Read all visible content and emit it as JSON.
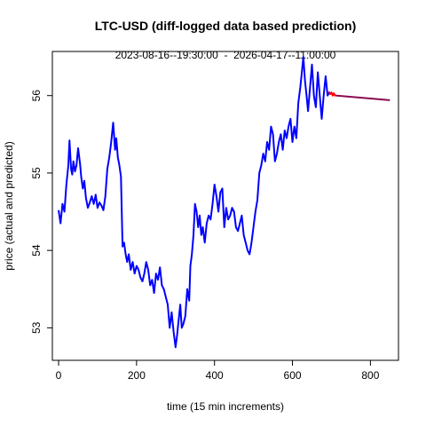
{
  "chart_data": {
    "type": "line",
    "title": "LTC-USD (diff-logged data based prediction)",
    "subtitle": "2023-08-16--19:30:00  -  2026-04-17--11:00:00",
    "xlabel": "time (15 min increments)",
    "ylabel": "price (actual and predicted)",
    "xlim": [
      -16,
      872
    ],
    "ylim": [
      52.58,
      56.57
    ],
    "x_ticks": [
      0,
      200,
      400,
      600,
      800
    ],
    "y_ticks": [
      53,
      54,
      55,
      56
    ],
    "grid": false,
    "legend": "none",
    "series": [
      {
        "color": "#0000ff",
        "x": [
          0,
          5,
          10,
          15,
          20,
          25,
          28,
          32,
          35,
          38,
          42,
          46,
          50,
          55,
          58,
          62,
          66,
          70,
          75,
          80,
          85,
          90,
          95,
          100,
          105,
          110,
          115,
          120,
          125,
          130,
          135,
          140,
          145,
          148,
          152,
          156,
          160,
          164,
          168,
          172,
          176,
          180,
          185,
          190,
          195,
          200,
          205,
          210,
          215,
          220,
          225,
          230,
          235,
          240,
          245,
          250,
          255,
          260,
          265,
          270,
          275,
          280,
          285,
          290,
          295,
          300,
          304,
          308,
          312,
          316,
          320,
          325,
          330,
          335,
          338,
          342,
          346,
          350,
          354,
          358,
          362,
          366,
          370,
          375,
          380,
          385,
          390,
          395,
          400,
          405,
          410,
          415,
          420,
          425,
          430,
          435,
          440,
          445,
          450,
          455,
          460,
          465,
          470,
          475,
          480,
          485,
          490,
          495,
          500,
          505,
          510,
          515,
          520,
          525,
          530,
          535,
          540,
          545,
          550,
          555,
          560,
          565,
          570,
          575,
          580,
          585,
          590,
          595,
          600,
          605,
          610,
          615,
          620,
          624,
          628,
          632,
          636,
          640,
          645,
          650,
          655,
          660,
          665,
          670,
          675,
          680,
          685,
          690,
          695
        ],
        "y": [
          54.52,
          54.35,
          54.6,
          54.5,
          54.85,
          55.1,
          55.42,
          55.05,
          54.98,
          55.15,
          55.02,
          55.1,
          55.32,
          55.12,
          54.95,
          54.8,
          54.9,
          54.68,
          54.55,
          54.62,
          54.7,
          54.6,
          54.72,
          54.55,
          54.62,
          54.58,
          54.52,
          54.7,
          55.05,
          55.2,
          55.4,
          55.65,
          55.3,
          55.45,
          55.2,
          55.1,
          54.95,
          54.05,
          54.1,
          53.95,
          53.85,
          53.95,
          53.75,
          53.85,
          53.7,
          53.8,
          53.75,
          53.65,
          53.6,
          53.7,
          53.85,
          53.75,
          53.55,
          53.62,
          53.45,
          53.7,
          53.62,
          53.78,
          53.55,
          53.5,
          53.4,
          53.3,
          53.0,
          53.2,
          52.95,
          52.75,
          52.9,
          53.1,
          53.3,
          53.0,
          53.05,
          53.15,
          53.5,
          53.35,
          53.8,
          53.95,
          54.2,
          54.6,
          54.5,
          54.3,
          54.45,
          54.2,
          54.3,
          54.1,
          54.35,
          54.45,
          54.4,
          54.6,
          54.85,
          54.7,
          54.5,
          54.75,
          54.8,
          54.3,
          54.55,
          54.4,
          54.45,
          54.55,
          54.5,
          54.3,
          54.25,
          54.35,
          54.45,
          54.2,
          54.1,
          54.0,
          53.95,
          54.1,
          54.3,
          54.5,
          54.65,
          55.0,
          55.1,
          55.25,
          55.15,
          55.4,
          55.3,
          55.6,
          55.5,
          55.15,
          55.25,
          55.4,
          55.5,
          55.3,
          55.55,
          55.45,
          55.6,
          55.7,
          55.4,
          55.6,
          55.45,
          55.9,
          56.1,
          56.3,
          56.5,
          56.2,
          56.0,
          55.8,
          56.1,
          56.4,
          56.0,
          55.85,
          56.3,
          56.0,
          55.7,
          56.0,
          56.25,
          56.0,
          56.05
        ]
      },
      {
        "color": "#ff0000",
        "x": [
          694,
          697,
          700,
          703,
          706,
          709,
          712
        ],
        "y": [
          56.05,
          56.02,
          56.04,
          56.0,
          56.03,
          56.0,
          56.01
        ]
      },
      {
        "color": "#8b0a50",
        "x": [
          712,
          850
        ],
        "y": [
          56.0,
          55.94
        ]
      }
    ]
  }
}
